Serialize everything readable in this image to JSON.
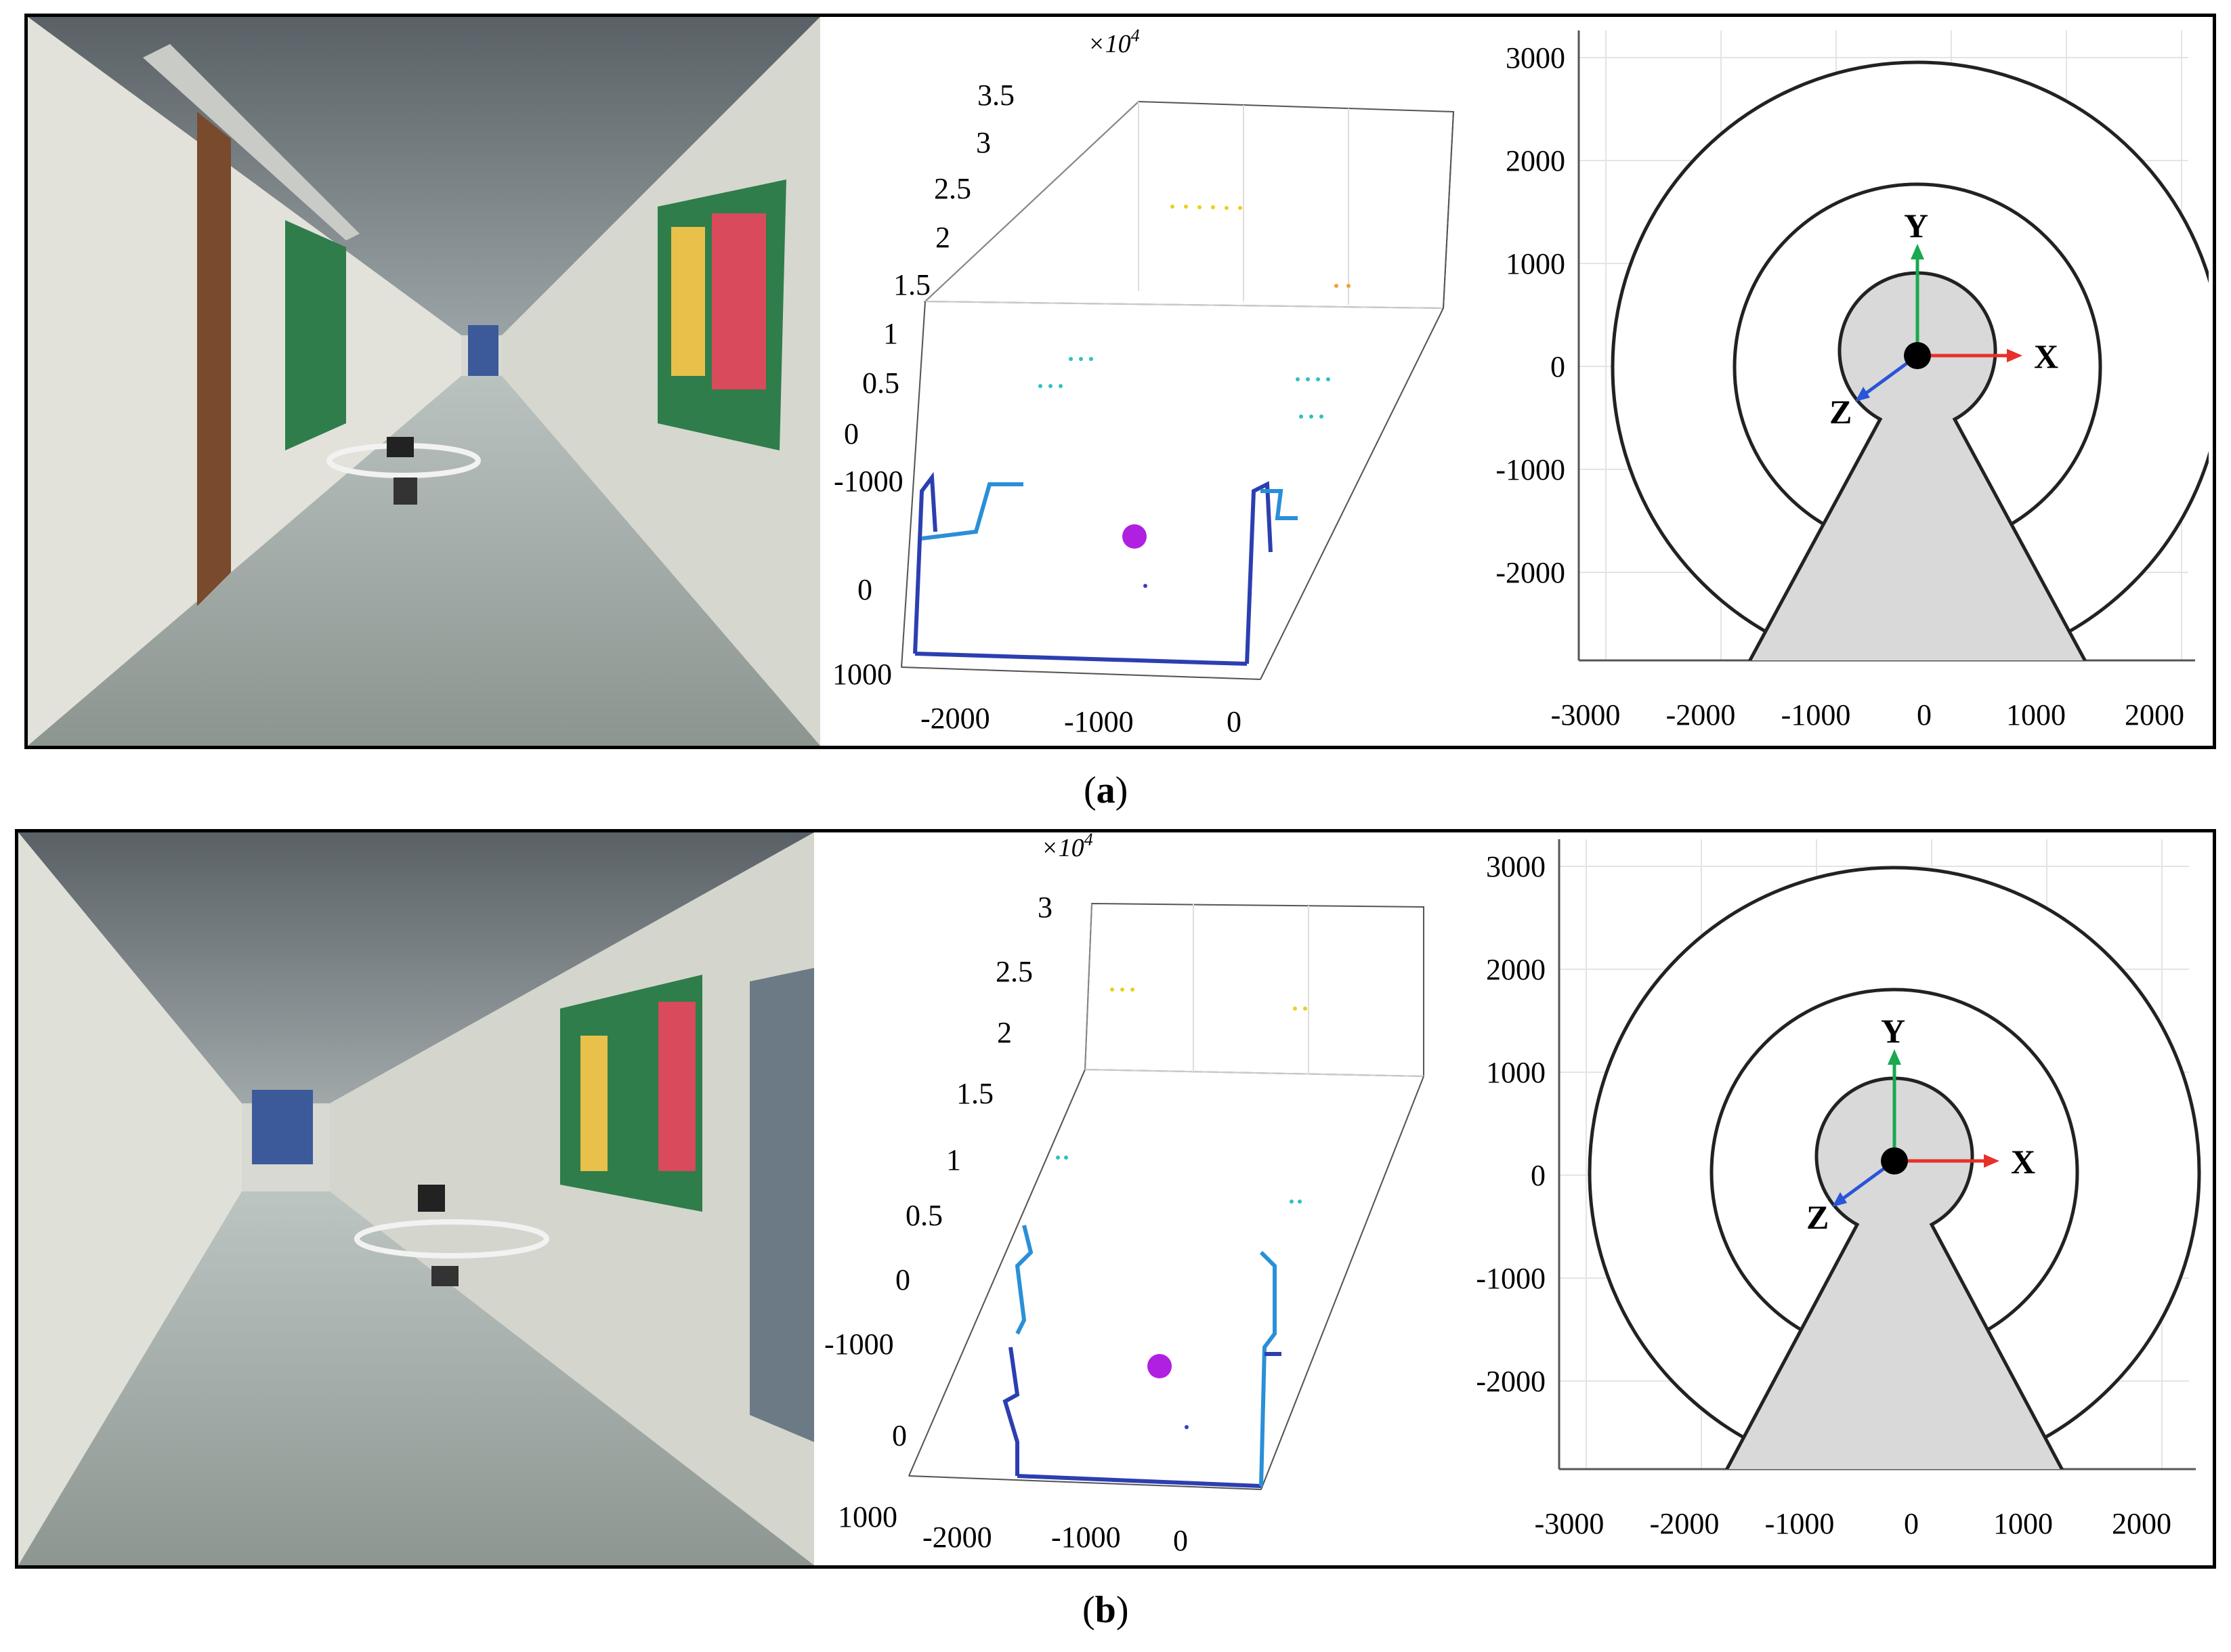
{
  "captions": {
    "a": {
      "open": "(",
      "letter": "a",
      "close": ")"
    },
    "b": {
      "open": "(",
      "letter": "b",
      "close": ")"
    }
  },
  "photos": [
    {
      "name": "corridor-photo-a",
      "description_icon": "drone-in-corridor-photo"
    },
    {
      "name": "corridor-photo-b",
      "description_icon": "drone-in-corridor-photo"
    }
  ],
  "lidar_plot_a": {
    "exponent_label": "×10",
    "exponent_power": "4",
    "z_ticks": [
      "0",
      "0.5",
      "1",
      "1.5",
      "2",
      "2.5",
      "3",
      "3.5"
    ],
    "y_ticks": [
      "-1000",
      "0",
      "1000"
    ],
    "x_ticks": [
      "-2000",
      "-1000",
      "0"
    ]
  },
  "lidar_plot_b": {
    "exponent_label": "×10",
    "exponent_power": "4",
    "z_ticks": [
      "0",
      "0.5",
      "1",
      "1.5",
      "2",
      "2.5",
      "3"
    ],
    "y_ticks": [
      "-1000",
      "0",
      "1000"
    ],
    "x_ticks": [
      "-2000",
      "-1000",
      "0"
    ]
  },
  "field_plot": {
    "y_ticks": [
      "3000",
      "2000",
      "1000",
      "0",
      "-1000",
      "-2000"
    ],
    "x_ticks": [
      "-3000",
      "-2000",
      "-1000",
      "0",
      "1000",
      "2000"
    ],
    "axis_labels": {
      "x": "X",
      "y": "Y",
      "z": "Z"
    },
    "colors": {
      "x": "#e8302a",
      "y": "#1aa850",
      "z": "#2a55d8",
      "fill": "#d9d9d9"
    }
  }
}
